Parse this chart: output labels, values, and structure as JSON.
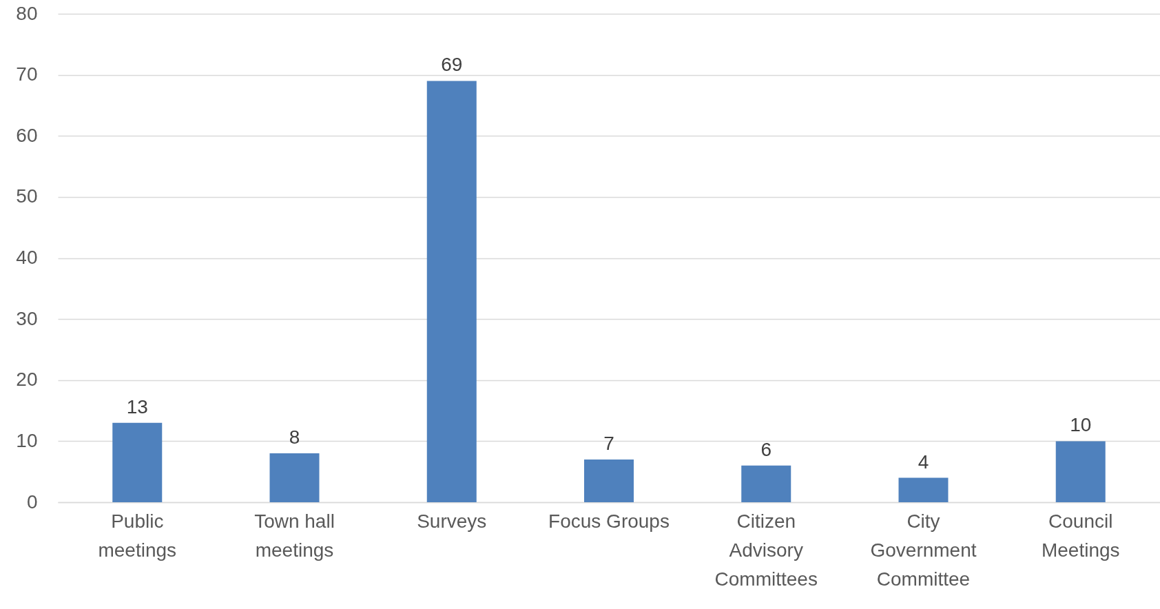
{
  "chart_data": {
    "type": "bar",
    "categories": [
      "Public meetings",
      "Town hall meetings",
      "Surveys",
      "Focus Groups",
      "Citizen Advisory Committees",
      "City Government Committee",
      "Council Meetings"
    ],
    "values": [
      13,
      8,
      69,
      7,
      6,
      4,
      10
    ],
    "color": "#4f81bd",
    "ylim": [
      0,
      80
    ],
    "yticks": [
      0,
      10,
      20,
      30,
      40,
      50,
      60,
      70,
      80
    ],
    "grid": "y",
    "data_labels": true
  }
}
